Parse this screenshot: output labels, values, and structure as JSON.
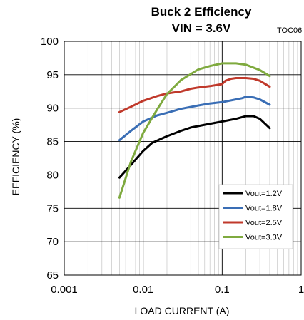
{
  "chart_data": {
    "type": "line",
    "title_line1": "Buck 2 Efficiency",
    "title_line2": "VIN = 3.6V",
    "tag": "TOC06",
    "xlabel": "LOAD CURRENT (A)",
    "ylabel": "EFFICIENCY (%)",
    "x_scale": "log",
    "xlim": [
      0.001,
      1
    ],
    "ylim": [
      65,
      100
    ],
    "x_ticks": [
      {
        "value": 0.001,
        "label": "0.001"
      },
      {
        "value": 0.01,
        "label": "0.01"
      },
      {
        "value": 0.1,
        "label": "0.1"
      },
      {
        "value": 1,
        "label": "1"
      }
    ],
    "y_ticks": [
      {
        "value": 65,
        "label": "65"
      },
      {
        "value": 70,
        "label": "70"
      },
      {
        "value": 75,
        "label": "75"
      },
      {
        "value": 80,
        "label": "80"
      },
      {
        "value": 85,
        "label": "85"
      },
      {
        "value": 90,
        "label": "90"
      },
      {
        "value": 95,
        "label": "95"
      },
      {
        "value": 100,
        "label": "100"
      }
    ],
    "grid": true,
    "legend_position": "bottom-right",
    "series": [
      {
        "name": "Vout=1.2V",
        "color": "#000000",
        "x": [
          0.005,
          0.007,
          0.01,
          0.013,
          0.02,
          0.03,
          0.04,
          0.06,
          0.1,
          0.15,
          0.2,
          0.25,
          0.3,
          0.4
        ],
        "y": [
          79.6,
          81.5,
          83.6,
          84.8,
          85.8,
          86.6,
          87.1,
          87.5,
          88.0,
          88.4,
          88.8,
          88.8,
          88.4,
          87.0
        ]
      },
      {
        "name": "Vout=1.8V",
        "color": "#3a6eb5",
        "x": [
          0.005,
          0.007,
          0.01,
          0.015,
          0.02,
          0.03,
          0.05,
          0.07,
          0.1,
          0.15,
          0.18,
          0.2,
          0.25,
          0.3,
          0.4
        ],
        "y": [
          85.2,
          86.6,
          88.0,
          88.9,
          89.3,
          89.9,
          90.4,
          90.7,
          90.9,
          91.3,
          91.5,
          91.7,
          91.6,
          91.3,
          90.5
        ]
      },
      {
        "name": "Vout=2.5V",
        "color": "#c0392b",
        "x": [
          0.005,
          0.007,
          0.01,
          0.015,
          0.02,
          0.03,
          0.04,
          0.05,
          0.07,
          0.1,
          0.11,
          0.13,
          0.15,
          0.2,
          0.25,
          0.3,
          0.4
        ],
        "y": [
          89.4,
          90.2,
          91.1,
          91.8,
          92.2,
          92.5,
          92.9,
          93.1,
          93.3,
          93.6,
          94.1,
          94.4,
          94.5,
          94.5,
          94.4,
          94.1,
          93.2
        ]
      },
      {
        "name": "Vout=3.3V",
        "color": "#7faa3f",
        "x": [
          0.005,
          0.007,
          0.01,
          0.015,
          0.02,
          0.03,
          0.05,
          0.07,
          0.1,
          0.15,
          0.2,
          0.3,
          0.4
        ],
        "y": [
          76.6,
          82.0,
          86.3,
          89.8,
          92.1,
          94.2,
          95.8,
          96.3,
          96.7,
          96.7,
          96.5,
          95.7,
          94.8
        ]
      }
    ]
  }
}
